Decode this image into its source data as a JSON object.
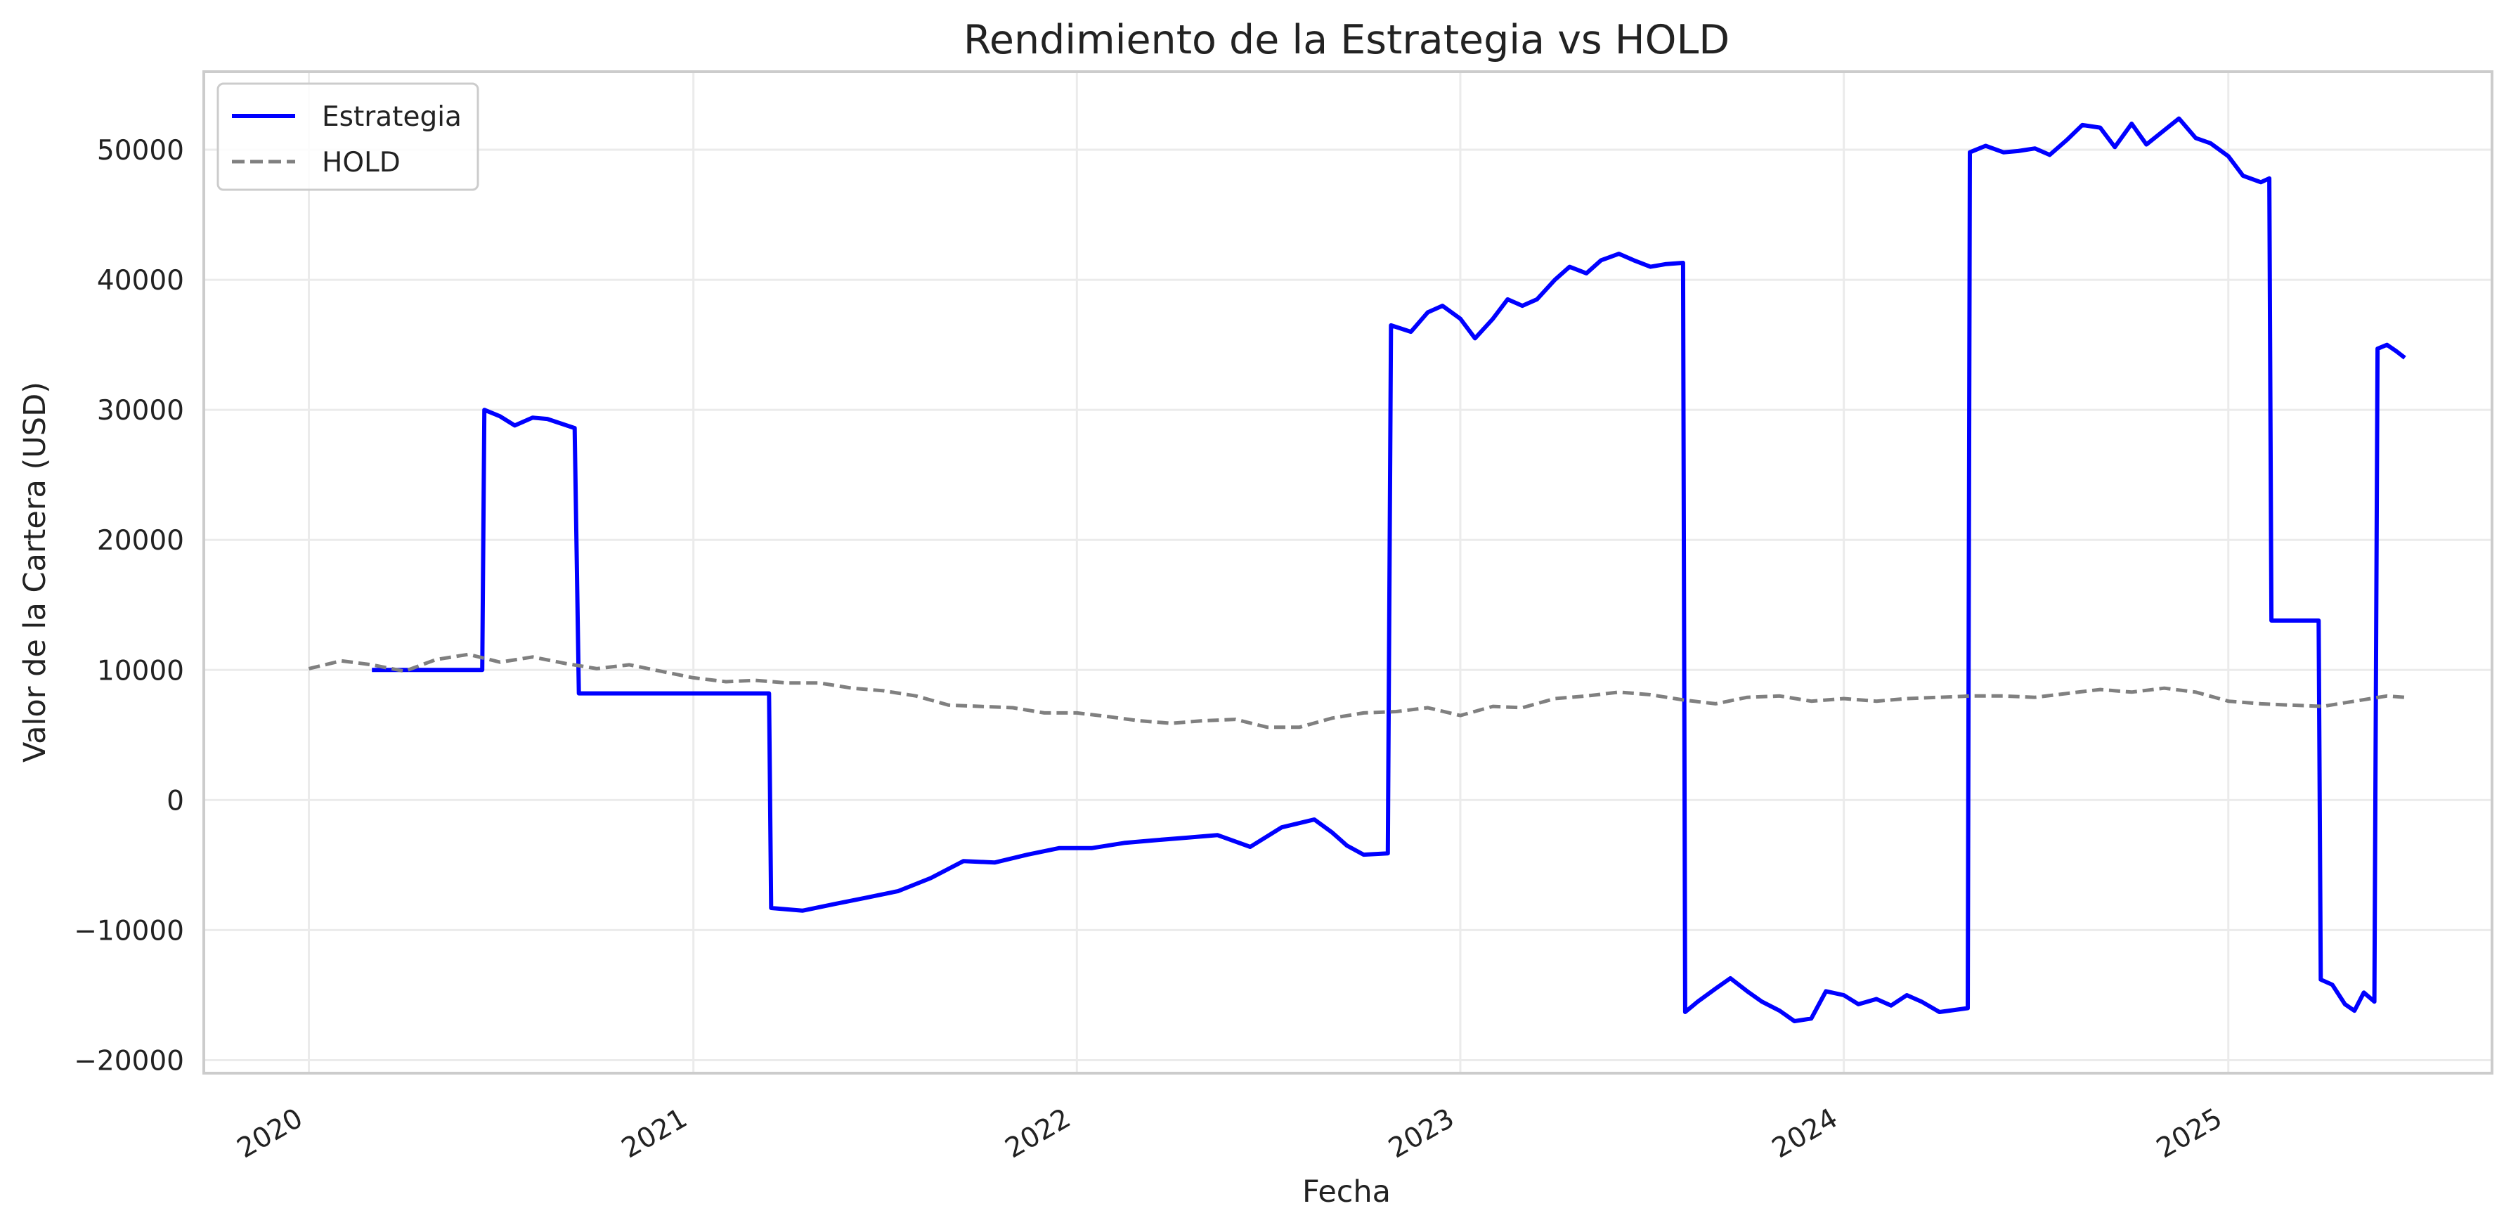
{
  "chart_data": {
    "type": "line",
    "title": "Rendimiento de la Estrategia vs HOLD",
    "xlabel": "Fecha",
    "ylabel": "Valor de la Cartera (USD)",
    "x_ticks": [
      "2020",
      "2021",
      "2022",
      "2023",
      "2024",
      "2025"
    ],
    "y_ticks": [
      "−20000",
      "−10000",
      "0",
      "10000",
      "20000",
      "30000",
      "40000",
      "50000"
    ],
    "y_tick_values": [
      -20000,
      -10000,
      0,
      10000,
      20000,
      30000,
      40000,
      50000
    ],
    "xlim": [
      "2019-09-23",
      "2025-09-09"
    ],
    "ylim": [
      -21000,
      56000
    ],
    "grid": true,
    "legend_position": "top-left",
    "series": [
      {
        "name": "Estrategia",
        "color": "#0000ff",
        "style": "solid",
        "points": [
          [
            "2020-03-01",
            10000
          ],
          [
            "2020-06-14",
            10000
          ],
          [
            "2020-06-16",
            30000
          ],
          [
            "2020-07-01",
            29500
          ],
          [
            "2020-07-15",
            28800
          ],
          [
            "2020-08-01",
            29400
          ],
          [
            "2020-08-15",
            29300
          ],
          [
            "2020-09-10",
            28600
          ],
          [
            "2020-09-14",
            8200
          ],
          [
            "2021-03-14",
            8200
          ],
          [
            "2021-03-16",
            -8300
          ],
          [
            "2021-04-15",
            -8500
          ],
          [
            "2021-05-15",
            -8000
          ],
          [
            "2021-06-15",
            -7500
          ],
          [
            "2021-07-15",
            -7000
          ],
          [
            "2021-08-15",
            -6000
          ],
          [
            "2021-09-15",
            -4700
          ],
          [
            "2021-10-15",
            -4800
          ],
          [
            "2021-11-15",
            -4200
          ],
          [
            "2021-12-15",
            -3700
          ],
          [
            "2022-01-15",
            -3700
          ],
          [
            "2022-02-15",
            -3300
          ],
          [
            "2022-03-15",
            -3100
          ],
          [
            "2022-04-15",
            -2900
          ],
          [
            "2022-05-15",
            -2700
          ],
          [
            "2022-06-15",
            -3600
          ],
          [
            "2022-07-15",
            -2100
          ],
          [
            "2022-08-15",
            -1500
          ],
          [
            "2022-09-01",
            -2500
          ],
          [
            "2022-09-15",
            -3500
          ],
          [
            "2022-10-01",
            -4200
          ],
          [
            "2022-10-24",
            -4100
          ],
          [
            "2022-10-27",
            36500
          ],
          [
            "2022-11-15",
            36000
          ],
          [
            "2022-12-01",
            37500
          ],
          [
            "2022-12-15",
            38000
          ],
          [
            "2023-01-01",
            37000
          ],
          [
            "2023-01-15",
            35500
          ],
          [
            "2023-02-01",
            37000
          ],
          [
            "2023-02-15",
            38500
          ],
          [
            "2023-03-01",
            38000
          ],
          [
            "2023-03-15",
            38500
          ],
          [
            "2023-04-01",
            40000
          ],
          [
            "2023-04-15",
            41000
          ],
          [
            "2023-05-01",
            40500
          ],
          [
            "2023-05-15",
            41500
          ],
          [
            "2023-06-01",
            42000
          ],
          [
            "2023-06-15",
            41500
          ],
          [
            "2023-07-01",
            41000
          ],
          [
            "2023-07-15",
            41200
          ],
          [
            "2023-08-01",
            41300
          ],
          [
            "2023-08-03",
            -16300
          ],
          [
            "2023-08-15",
            -15500
          ],
          [
            "2023-09-01",
            -14500
          ],
          [
            "2023-09-15",
            -13700
          ],
          [
            "2023-10-01",
            -14700
          ],
          [
            "2023-10-15",
            -15500
          ],
          [
            "2023-11-01",
            -16200
          ],
          [
            "2023-11-15",
            -17000
          ],
          [
            "2023-12-01",
            -16800
          ],
          [
            "2023-12-15",
            -14700
          ],
          [
            "2024-01-01",
            -15000
          ],
          [
            "2024-01-15",
            -15700
          ],
          [
            "2024-02-01",
            -15300
          ],
          [
            "2024-02-15",
            -15800
          ],
          [
            "2024-03-01",
            -15000
          ],
          [
            "2024-03-15",
            -15500
          ],
          [
            "2024-04-01",
            -16300
          ],
          [
            "2024-04-28",
            -16000
          ],
          [
            "2024-04-30",
            49800
          ],
          [
            "2024-05-15",
            50300
          ],
          [
            "2024-06-01",
            49800
          ],
          [
            "2024-06-15",
            49900
          ],
          [
            "2024-07-01",
            50100
          ],
          [
            "2024-07-15",
            49600
          ],
          [
            "2024-08-01",
            50800
          ],
          [
            "2024-08-15",
            51900
          ],
          [
            "2024-09-01",
            51700
          ],
          [
            "2024-09-15",
            50200
          ],
          [
            "2024-10-01",
            52000
          ],
          [
            "2024-10-15",
            50400
          ],
          [
            "2024-11-01",
            51500
          ],
          [
            "2024-11-15",
            52400
          ],
          [
            "2024-12-01",
            50900
          ],
          [
            "2024-12-15",
            50500
          ],
          [
            "2025-01-01",
            49500
          ],
          [
            "2025-01-15",
            48000
          ],
          [
            "2025-02-01",
            47500
          ],
          [
            "2025-02-09",
            47800
          ],
          [
            "2025-02-11",
            13800
          ],
          [
            "2025-03-28",
            13800
          ],
          [
            "2025-03-30",
            -13800
          ],
          [
            "2025-04-10",
            -14200
          ],
          [
            "2025-04-22",
            -15700
          ],
          [
            "2025-05-01",
            -16200
          ],
          [
            "2025-05-10",
            -14800
          ],
          [
            "2025-05-20",
            -15500
          ],
          [
            "2025-05-23",
            34700
          ],
          [
            "2025-06-01",
            35000
          ],
          [
            "2025-06-10",
            34500
          ],
          [
            "2025-06-18",
            34000
          ]
        ]
      },
      {
        "name": "HOLD",
        "color": "#808080",
        "style": "dashed",
        "points": [
          [
            "2020-01-01",
            10100
          ],
          [
            "2020-02-01",
            10700
          ],
          [
            "2020-03-01",
            10400
          ],
          [
            "2020-04-01",
            9900
          ],
          [
            "2020-05-01",
            10800
          ],
          [
            "2020-06-01",
            11200
          ],
          [
            "2020-07-01",
            10600
          ],
          [
            "2020-08-01",
            11000
          ],
          [
            "2020-09-01",
            10500
          ],
          [
            "2020-10-01",
            10100
          ],
          [
            "2020-11-01",
            10400
          ],
          [
            "2020-12-01",
            9900
          ],
          [
            "2021-01-01",
            9400
          ],
          [
            "2021-02-01",
            9100
          ],
          [
            "2021-03-01",
            9200
          ],
          [
            "2021-04-01",
            9000
          ],
          [
            "2021-05-01",
            9000
          ],
          [
            "2021-06-01",
            8600
          ],
          [
            "2021-07-01",
            8400
          ],
          [
            "2021-08-01",
            8000
          ],
          [
            "2021-09-01",
            7300
          ],
          [
            "2021-10-01",
            7200
          ],
          [
            "2021-11-01",
            7100
          ],
          [
            "2021-12-01",
            6700
          ],
          [
            "2022-01-01",
            6700
          ],
          [
            "2022-02-01",
            6400
          ],
          [
            "2022-03-01",
            6100
          ],
          [
            "2022-04-01",
            5900
          ],
          [
            "2022-05-01",
            6100
          ],
          [
            "2022-06-01",
            6200
          ],
          [
            "2022-07-01",
            5600
          ],
          [
            "2022-08-01",
            5600
          ],
          [
            "2022-09-01",
            6300
          ],
          [
            "2022-10-01",
            6700
          ],
          [
            "2022-11-01",
            6800
          ],
          [
            "2022-12-01",
            7100
          ],
          [
            "2023-01-01",
            6500
          ],
          [
            "2023-02-01",
            7200
          ],
          [
            "2023-03-01",
            7100
          ],
          [
            "2023-04-01",
            7800
          ],
          [
            "2023-05-01",
            8000
          ],
          [
            "2023-06-01",
            8300
          ],
          [
            "2023-07-01",
            8100
          ],
          [
            "2023-08-01",
            7700
          ],
          [
            "2023-09-01",
            7400
          ],
          [
            "2023-10-01",
            7900
          ],
          [
            "2023-11-01",
            8000
          ],
          [
            "2023-12-01",
            7600
          ],
          [
            "2024-01-01",
            7800
          ],
          [
            "2024-02-01",
            7600
          ],
          [
            "2024-03-01",
            7800
          ],
          [
            "2024-04-01",
            7900
          ],
          [
            "2024-05-01",
            8000
          ],
          [
            "2024-06-01",
            8000
          ],
          [
            "2024-07-01",
            7900
          ],
          [
            "2024-08-01",
            8200
          ],
          [
            "2024-09-01",
            8500
          ],
          [
            "2024-10-01",
            8300
          ],
          [
            "2024-11-01",
            8600
          ],
          [
            "2024-12-01",
            8300
          ],
          [
            "2025-01-01",
            7600
          ],
          [
            "2025-02-01",
            7400
          ],
          [
            "2025-03-01",
            7300
          ],
          [
            "2025-04-01",
            7200
          ],
          [
            "2025-05-01",
            7600
          ],
          [
            "2025-06-01",
            8000
          ],
          [
            "2025-06-18",
            7900
          ]
        ]
      }
    ]
  }
}
